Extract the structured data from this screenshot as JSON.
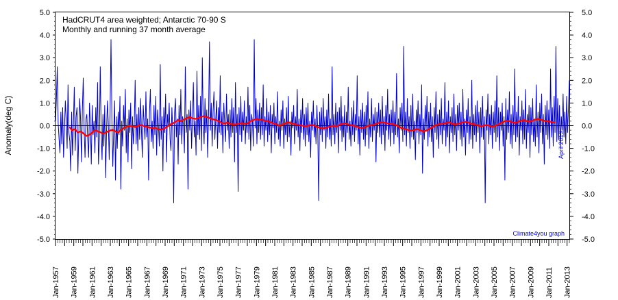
{
  "chart_data": {
    "type": "line",
    "title": "HadCRUT4 area weighted; Antarctic 70-90 S",
    "subtitle": "Monthly and running 37 month average",
    "ylabel": "Anomaly(deg C)",
    "xlabel": "",
    "ylim": [
      -5.0,
      5.0
    ],
    "xlim": [
      "1957-01",
      "2013-04"
    ],
    "y_ticks": [
      "5.0",
      "4.0",
      "3.0",
      "2.0",
      "1.0",
      "0.0",
      "-1.0",
      "-2.0",
      "-3.0",
      "-4.0",
      "-5.0"
    ],
    "right_y_ticks": [
      "5.0",
      "4.0",
      "3.0",
      "2.0",
      "1.0",
      "0.0",
      "-1.0",
      "-2.0",
      "-3.0",
      "-4.0",
      "-5.0"
    ],
    "x_tick_labels": [
      "Jan-1957",
      "Jan-1959",
      "Jan-1961",
      "Jan-1963",
      "Jan-1965",
      "Jan-1967",
      "Jan-1969",
      "Jan-1971",
      "Jan-1973",
      "Jan-1975",
      "Jan-1977",
      "Jan-1979",
      "Jan-1981",
      "Jan-1983",
      "Jan-1985",
      "Jan-1987",
      "Jan-1989",
      "Jan-1991",
      "Jan-1993",
      "Jan-1995",
      "Jan-1997",
      "Jan-1999",
      "Jan-2001",
      "Jan-2003",
      "Jan-2005",
      "Jan-2007",
      "Jan-2009",
      "Jan-2011",
      "Jan-2013"
    ],
    "grid": false,
    "annotations": {
      "credit": "Climate4you graph",
      "date": "April 2013"
    },
    "colors": {
      "monthly": "#0000cc",
      "running": "#ff0000",
      "zero_line": "#000000"
    },
    "series": [
      {
        "sampling": "monthly",
        "start": "1957-01",
        "values": [
          0.2,
          1.2,
          2.6,
          0.1,
          -0.6,
          -1.2,
          0.6,
          -0.8,
          0.8,
          -1.4,
          -0.2,
          1.1,
          0.2,
          -1.0,
          1.8,
          -0.3,
          -0.7,
          -2.0,
          0.6,
          -1.3,
          0.1,
          1.7,
          -1.1,
          0.4,
          0.8,
          -2.1,
          -0.4,
          1.2,
          0.3,
          -1.6,
          0.7,
          2.1,
          -0.2,
          -1.4,
          0.3,
          0.5,
          -0.6,
          -1.4,
          1.0,
          0.0,
          -1.7,
          0.9,
          -0.4,
          0.2,
          -1.2,
          0.8,
          -0.5,
          1.9,
          -1.7,
          -0.6,
          2.6,
          -0.2,
          -1.5,
          0.5,
          -0.9,
          0.9,
          -2.3,
          -0.3,
          1.1,
          0.1,
          -1.5,
          0.7,
          3.8,
          0.3,
          -1.8,
          -0.3,
          1.1,
          -2.4,
          0.4,
          -1.0,
          0.6,
          -0.4,
          1.3,
          -2.8,
          0.2,
          -0.9,
          0.9,
          -0.2,
          1.6,
          -1.2,
          0.3,
          -1.6,
          0.7,
          -0.3,
          1.0,
          -1.9,
          0.4,
          -0.8,
          0.1,
          2.0,
          -0.8,
          0.5,
          -1.1,
          0.8,
          -0.6,
          1.2,
          -0.2,
          -1.4,
          0.9,
          0.1,
          -0.6,
          1.5,
          -0.5,
          0.3,
          -2.4,
          0.6,
          1.6,
          -0.7,
          0.2,
          -1.0,
          0.9,
          -0.4,
          1.3,
          -1.3,
          0.7,
          0.0,
          -0.9,
          2.7,
          -0.6,
          0.4,
          -2.0,
          0.8,
          -0.3,
          1.4,
          -1.6,
          0.5,
          0.0,
          1.0,
          -0.6,
          -1.1,
          0.8,
          -0.2,
          -3.4,
          0.6,
          1.2,
          -0.5,
          0.3,
          -1.7,
          0.9,
          -0.4,
          1.6,
          -0.8,
          0.4,
          0.0,
          -1.2,
          2.6,
          -0.3,
          0.5,
          -2.8,
          0.7,
          -0.2,
          1.1,
          -1.0,
          0.4,
          1.9,
          -0.5,
          0.2,
          -1.3,
          2.4,
          -0.4,
          0.9,
          -0.6,
          1.3,
          -1.1,
          3.0,
          0.2,
          -0.8,
          1.2,
          -0.3,
          0.7,
          -1.4,
          0.5,
          3.7,
          -0.2,
          1.0,
          -0.9,
          0.6,
          1.5,
          -0.6,
          0.3,
          1.1,
          -1.0,
          0.8,
          -0.3,
          2.2,
          -0.4,
          0.6,
          -1.2,
          1.0,
          0.1,
          -0.7,
          1.4,
          -0.2,
          0.5,
          -1.0,
          0.7,
          -0.5,
          1.2,
          -0.3,
          0.8,
          -1.6,
          1.9,
          -0.3,
          0.5,
          -2.9,
          0.8,
          -0.4,
          1.3,
          -0.7,
          0.6,
          -0.2,
          1.1,
          -0.8,
          0.4,
          -0.3,
          1.7,
          -0.6,
          0.9,
          -1.1,
          0.5,
          0.2,
          -0.9,
          3.8,
          -0.1,
          1.2,
          -0.8,
          0.7,
          -0.3,
          1.0,
          -0.6,
          0.8,
          -0.4,
          1.8,
          -0.9,
          0.4,
          -0.2,
          1.2,
          -0.7,
          0.6,
          -0.4,
          0.9,
          -1.2,
          0.5,
          -0.1,
          1.0,
          -0.8,
          0.4,
          -0.3,
          1.5,
          -0.6,
          0.2,
          -0.9,
          0.7,
          -0.2,
          1.1,
          -1.0,
          0.3,
          -0.4,
          0.8,
          -0.7,
          1.3,
          -0.5,
          0.2,
          -1.3,
          0.6,
          -0.1,
          0.9,
          -0.8,
          0.4,
          -0.2,
          1.6,
          -0.5,
          0.3,
          -1.1,
          0.7,
          -0.3,
          1.2,
          -0.6,
          0.5,
          -0.9,
          0.8,
          -0.4,
          1.0,
          -0.7,
          0.2,
          -1.4,
          0.6,
          -0.2,
          1.1,
          -0.5,
          0.3,
          -0.8,
          0.9,
          -0.3,
          -3.3,
          0.6,
          -0.4,
          0.8,
          -0.7,
          1.2,
          -0.2,
          0.4,
          -1.0,
          0.7,
          -0.5,
          1.4,
          -0.6,
          0.3,
          -0.9,
          2.6,
          -0.4,
          0.5,
          -0.8,
          1.0,
          -0.3,
          0.6,
          -1.2,
          0.8,
          -0.2,
          1.3,
          -0.7,
          0.4,
          -0.5,
          0.9,
          -1.1,
          0.6,
          -0.3,
          1.7,
          -0.6,
          0.2,
          -0.9,
          0.8,
          -0.4,
          1.1,
          -0.7,
          0.5,
          -0.2,
          2.2,
          -0.8,
          0.4,
          -1.3,
          0.7,
          -0.3,
          1.0,
          -0.6,
          0.6,
          -0.9,
          0.9,
          -0.4,
          1.5,
          -1.0,
          0.3,
          -0.5,
          1.2,
          -0.7,
          0.5,
          -0.2,
          0.8,
          -1.6,
          0.6,
          -0.3,
          1.0,
          -0.5,
          0.7,
          -0.8,
          1.3,
          -0.4,
          0.4,
          -1.1,
          0.9,
          -0.2,
          1.6,
          -0.6,
          0.5,
          -0.9,
          0.7,
          -0.3,
          1.1,
          -0.8,
          0.6,
          -0.4,
          2.3,
          -0.5,
          0.3,
          -1.2,
          0.8,
          -0.2,
          1.0,
          -0.7,
          3.5,
          -0.4,
          0.6,
          -0.9,
          1.2,
          -0.3,
          0.4,
          -1.0,
          0.9,
          -0.5,
          1.4,
          -0.6,
          0.2,
          -1.5,
          0.7,
          -0.3,
          1.1,
          -0.8,
          0.5,
          -0.4,
          1.8,
          -2.1,
          0.3,
          -0.6,
          0.9,
          -0.2,
          1.3,
          -0.9,
          0.6,
          -0.5,
          1.0,
          -0.7,
          0.4,
          -1.4,
          0.8,
          -0.3,
          1.5,
          -0.6,
          0.5,
          -1.0,
          0.7,
          -0.4,
          1.2,
          -0.8,
          0.3,
          -0.2,
          1.9,
          -0.9,
          0.6,
          -0.5,
          1.1,
          -1.2,
          0.4,
          -0.3,
          0.8,
          -0.7,
          1.4,
          -0.4,
          0.5,
          -1.1,
          0.9,
          -0.2,
          1.0,
          -0.6,
          0.6,
          -0.9,
          1.6,
          -0.5,
          0.3,
          -1.3,
          0.7,
          -0.3,
          1.2,
          -0.8,
          0.4,
          -0.6,
          2.0,
          -1.0,
          0.5,
          -0.4,
          0.9,
          -0.7,
          1.1,
          -0.3,
          0.6,
          -1.2,
          0.8,
          -0.5,
          1.3,
          -0.6,
          0.4,
          -3.4,
          0.7,
          -0.2,
          1.4,
          -0.8,
          0.5,
          -0.4,
          0.9,
          -1.0,
          0.6,
          -0.3,
          1.1,
          -0.7,
          2.2,
          -0.5,
          0.8,
          -1.1,
          0.6,
          -0.2,
          1.0,
          -0.9,
          0.4,
          -2.4,
          1.2,
          -0.6,
          0.7,
          -0.3,
          1.5,
          -0.8,
          0.5,
          -1.0,
          0.9,
          -0.4,
          2.5,
          -0.7,
          0.6,
          -0.5,
          1.3,
          -1.3,
          0.4,
          -0.2,
          1.1,
          -0.8,
          0.7,
          -0.6,
          1.6,
          -1.0,
          0.5,
          -0.3,
          0.9,
          -1.4,
          0.8,
          -0.4,
          1.2,
          -0.7,
          0.3,
          -0.9,
          1.8,
          -0.5,
          0.6,
          -1.2,
          1.0,
          -0.3,
          1.4,
          -0.8,
          0.5,
          -1.7,
          0.9,
          -0.4,
          1.1,
          -0.6,
          0.7,
          -1.0,
          2.5,
          -0.5,
          0.8,
          -0.9,
          1.3,
          -0.3,
          3.5,
          -0.7,
          1.2,
          -0.6,
          0.9,
          -1.0,
          0.4,
          -0.2,
          1.4,
          -0.5,
          0.6,
          -0.8,
          1.3,
          -0.3,
          0.8,
          2.0
        ]
      },
      {
        "sampling": "running 37 month average",
        "start": "1958-07",
        "values": [
          -0.05,
          -0.2,
          -0.15,
          -0.3,
          -0.25,
          -0.35,
          -0.45,
          -0.4,
          -0.3,
          -0.2,
          -0.25,
          -0.3,
          -0.35,
          -0.28,
          -0.22,
          -0.18,
          -0.25,
          -0.3,
          -0.2,
          -0.1,
          -0.05,
          0.0,
          -0.03,
          -0.06,
          0.0,
          0.03,
          -0.02,
          -0.05,
          -0.08,
          -0.12,
          -0.1,
          -0.15,
          -0.18,
          -0.12,
          -0.05,
          0.05,
          0.1,
          0.18,
          0.25,
          0.2,
          0.28,
          0.35,
          0.38,
          0.32,
          0.3,
          0.35,
          0.4,
          0.42,
          0.38,
          0.32,
          0.28,
          0.25,
          0.2,
          0.12,
          0.1,
          0.14,
          0.08,
          0.05,
          0.06,
          0.1,
          0.12,
          0.08,
          0.1,
          0.2,
          0.25,
          0.3,
          0.28,
          0.26,
          0.22,
          0.2,
          0.16,
          0.1,
          0.06,
          0.0,
          0.05,
          0.1,
          0.15,
          0.12,
          0.08,
          0.05,
          0.03,
          0.0,
          -0.02,
          0.0,
          0.03,
          0.02,
          -0.05,
          -0.08,
          -0.12,
          -0.1,
          -0.06,
          -0.02,
          0.0,
          -0.03,
          0.05,
          0.08,
          0.1,
          0.05,
          0.02,
          0.0,
          -0.05,
          -0.08,
          -0.1,
          -0.05,
          0.0,
          0.02,
          0.05,
          0.1,
          0.14,
          0.15,
          0.12,
          0.1,
          0.08,
          0.05,
          0.0,
          -0.08,
          -0.12,
          -0.15,
          -0.2,
          -0.22,
          -0.18,
          -0.15,
          -0.2,
          -0.25,
          -0.22,
          -0.15,
          -0.08,
          0.0,
          0.05,
          0.08,
          0.1,
          0.12,
          0.15,
          0.1,
          0.05,
          0.08,
          0.12,
          0.15,
          0.18,
          0.12,
          0.08,
          0.05,
          0.02,
          -0.02,
          0.0,
          0.03,
          0.0,
          -0.05,
          0.0,
          0.05,
          0.12,
          0.18,
          0.22,
          0.2,
          0.15,
          0.12,
          0.18,
          0.22,
          0.25,
          0.2,
          0.18,
          0.22,
          0.28,
          0.3,
          0.26,
          0.22,
          0.2,
          0.18,
          0.16,
          0.15
        ]
      }
    ]
  }
}
